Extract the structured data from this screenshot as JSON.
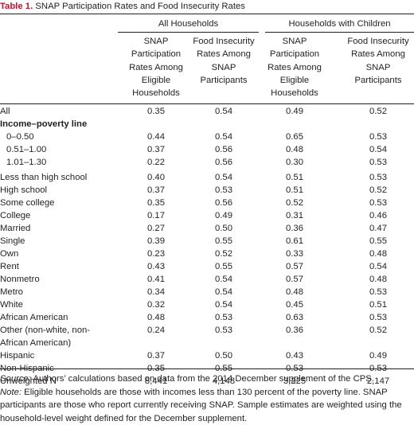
{
  "caption": {
    "label": "Table 1.",
    "title": "SNAP Participation Rates and Food Insecurity Rates"
  },
  "groups": [
    "All Households",
    "Households with Children"
  ],
  "columns": [
    "SNAP\nParticipation\nRates Among\nEligible\nHouseholds",
    "Food Insecurity\nRates Among\nSNAP\nParticipants",
    "SNAP\nParticipation\nRates Among\nEligible\nHouseholds",
    "Food Insecurity\nRates Among\nSNAP\nParticipants"
  ],
  "rows": [
    {
      "label": "All",
      "values": [
        "0.35",
        "0.54",
        "0.49",
        "0.52"
      ]
    },
    {
      "label": "Income–poverty line",
      "values": [
        "",
        "",
        "",
        ""
      ],
      "bold": true
    },
    {
      "label": "0–0.50",
      "values": [
        "0.44",
        "0.54",
        "0.65",
        "0.53"
      ],
      "indent": true
    },
    {
      "label": "0.51–1.00",
      "values": [
        "0.37",
        "0.56",
        "0.48",
        "0.54"
      ],
      "indent": true
    },
    {
      "label": "1.01–1.30",
      "values": [
        "0.22",
        "0.56",
        "0.30",
        "0.53"
      ],
      "indent": true
    },
    {
      "label": "Less than high school",
      "values": [
        "0.40",
        "0.54",
        "0.51",
        "0.53"
      ]
    },
    {
      "label": "High school",
      "values": [
        "0.37",
        "0.53",
        "0.51",
        "0.52"
      ]
    },
    {
      "label": "Some college",
      "values": [
        "0.35",
        "0.56",
        "0.52",
        "0.53"
      ]
    },
    {
      "label": "College",
      "values": [
        "0.17",
        "0.49",
        "0.31",
        "0.46"
      ]
    },
    {
      "label": "Married",
      "values": [
        "0.27",
        "0.50",
        "0.36",
        "0.47"
      ]
    },
    {
      "label": "Single",
      "values": [
        "0.39",
        "0.55",
        "0.61",
        "0.55"
      ]
    },
    {
      "label": "Own",
      "values": [
        "0.23",
        "0.52",
        "0.33",
        "0.48"
      ]
    },
    {
      "label": "Rent",
      "values": [
        "0.43",
        "0.55",
        "0.57",
        "0.54"
      ]
    },
    {
      "label": "Nonmetro",
      "values": [
        "0.41",
        "0.54",
        "0.57",
        "0.48"
      ]
    },
    {
      "label": "Metro",
      "values": [
        "0.34",
        "0.54",
        "0.48",
        "0.53"
      ]
    },
    {
      "label": "White",
      "values": [
        "0.32",
        "0.54",
        "0.45",
        "0.51"
      ]
    },
    {
      "label": "African American",
      "values": [
        "0.48",
        "0.53",
        "0.63",
        "0.53"
      ]
    },
    {
      "label": "Other (non-white, non-African American)",
      "values": [
        "0.24",
        "0.53",
        "0.36",
        "0.52"
      ],
      "tall": true
    },
    {
      "label": "Hispanic",
      "values": [
        "0.37",
        "0.50",
        "0.43",
        "0.49"
      ]
    },
    {
      "label": "Non-Hispanic",
      "values": [
        "0.35",
        "0.55",
        "0.53",
        "0.53"
      ]
    },
    {
      "label": "Unweighted N",
      "values": [
        "8,441",
        "4,148",
        "3,225",
        "2,147"
      ]
    }
  ],
  "notes": {
    "source_label": "Source:",
    "source_text": " Authors’ calculations based on data from the 2014 December supplement of the CPS.",
    "note_label": "Note:",
    "note_text": " Eligible households are those with incomes less than 130 percent of the poverty line. SNAP participants are those who report currently receiving SNAP. Sample estimates are weighted using the household-level weight defined for the December supplement."
  }
}
